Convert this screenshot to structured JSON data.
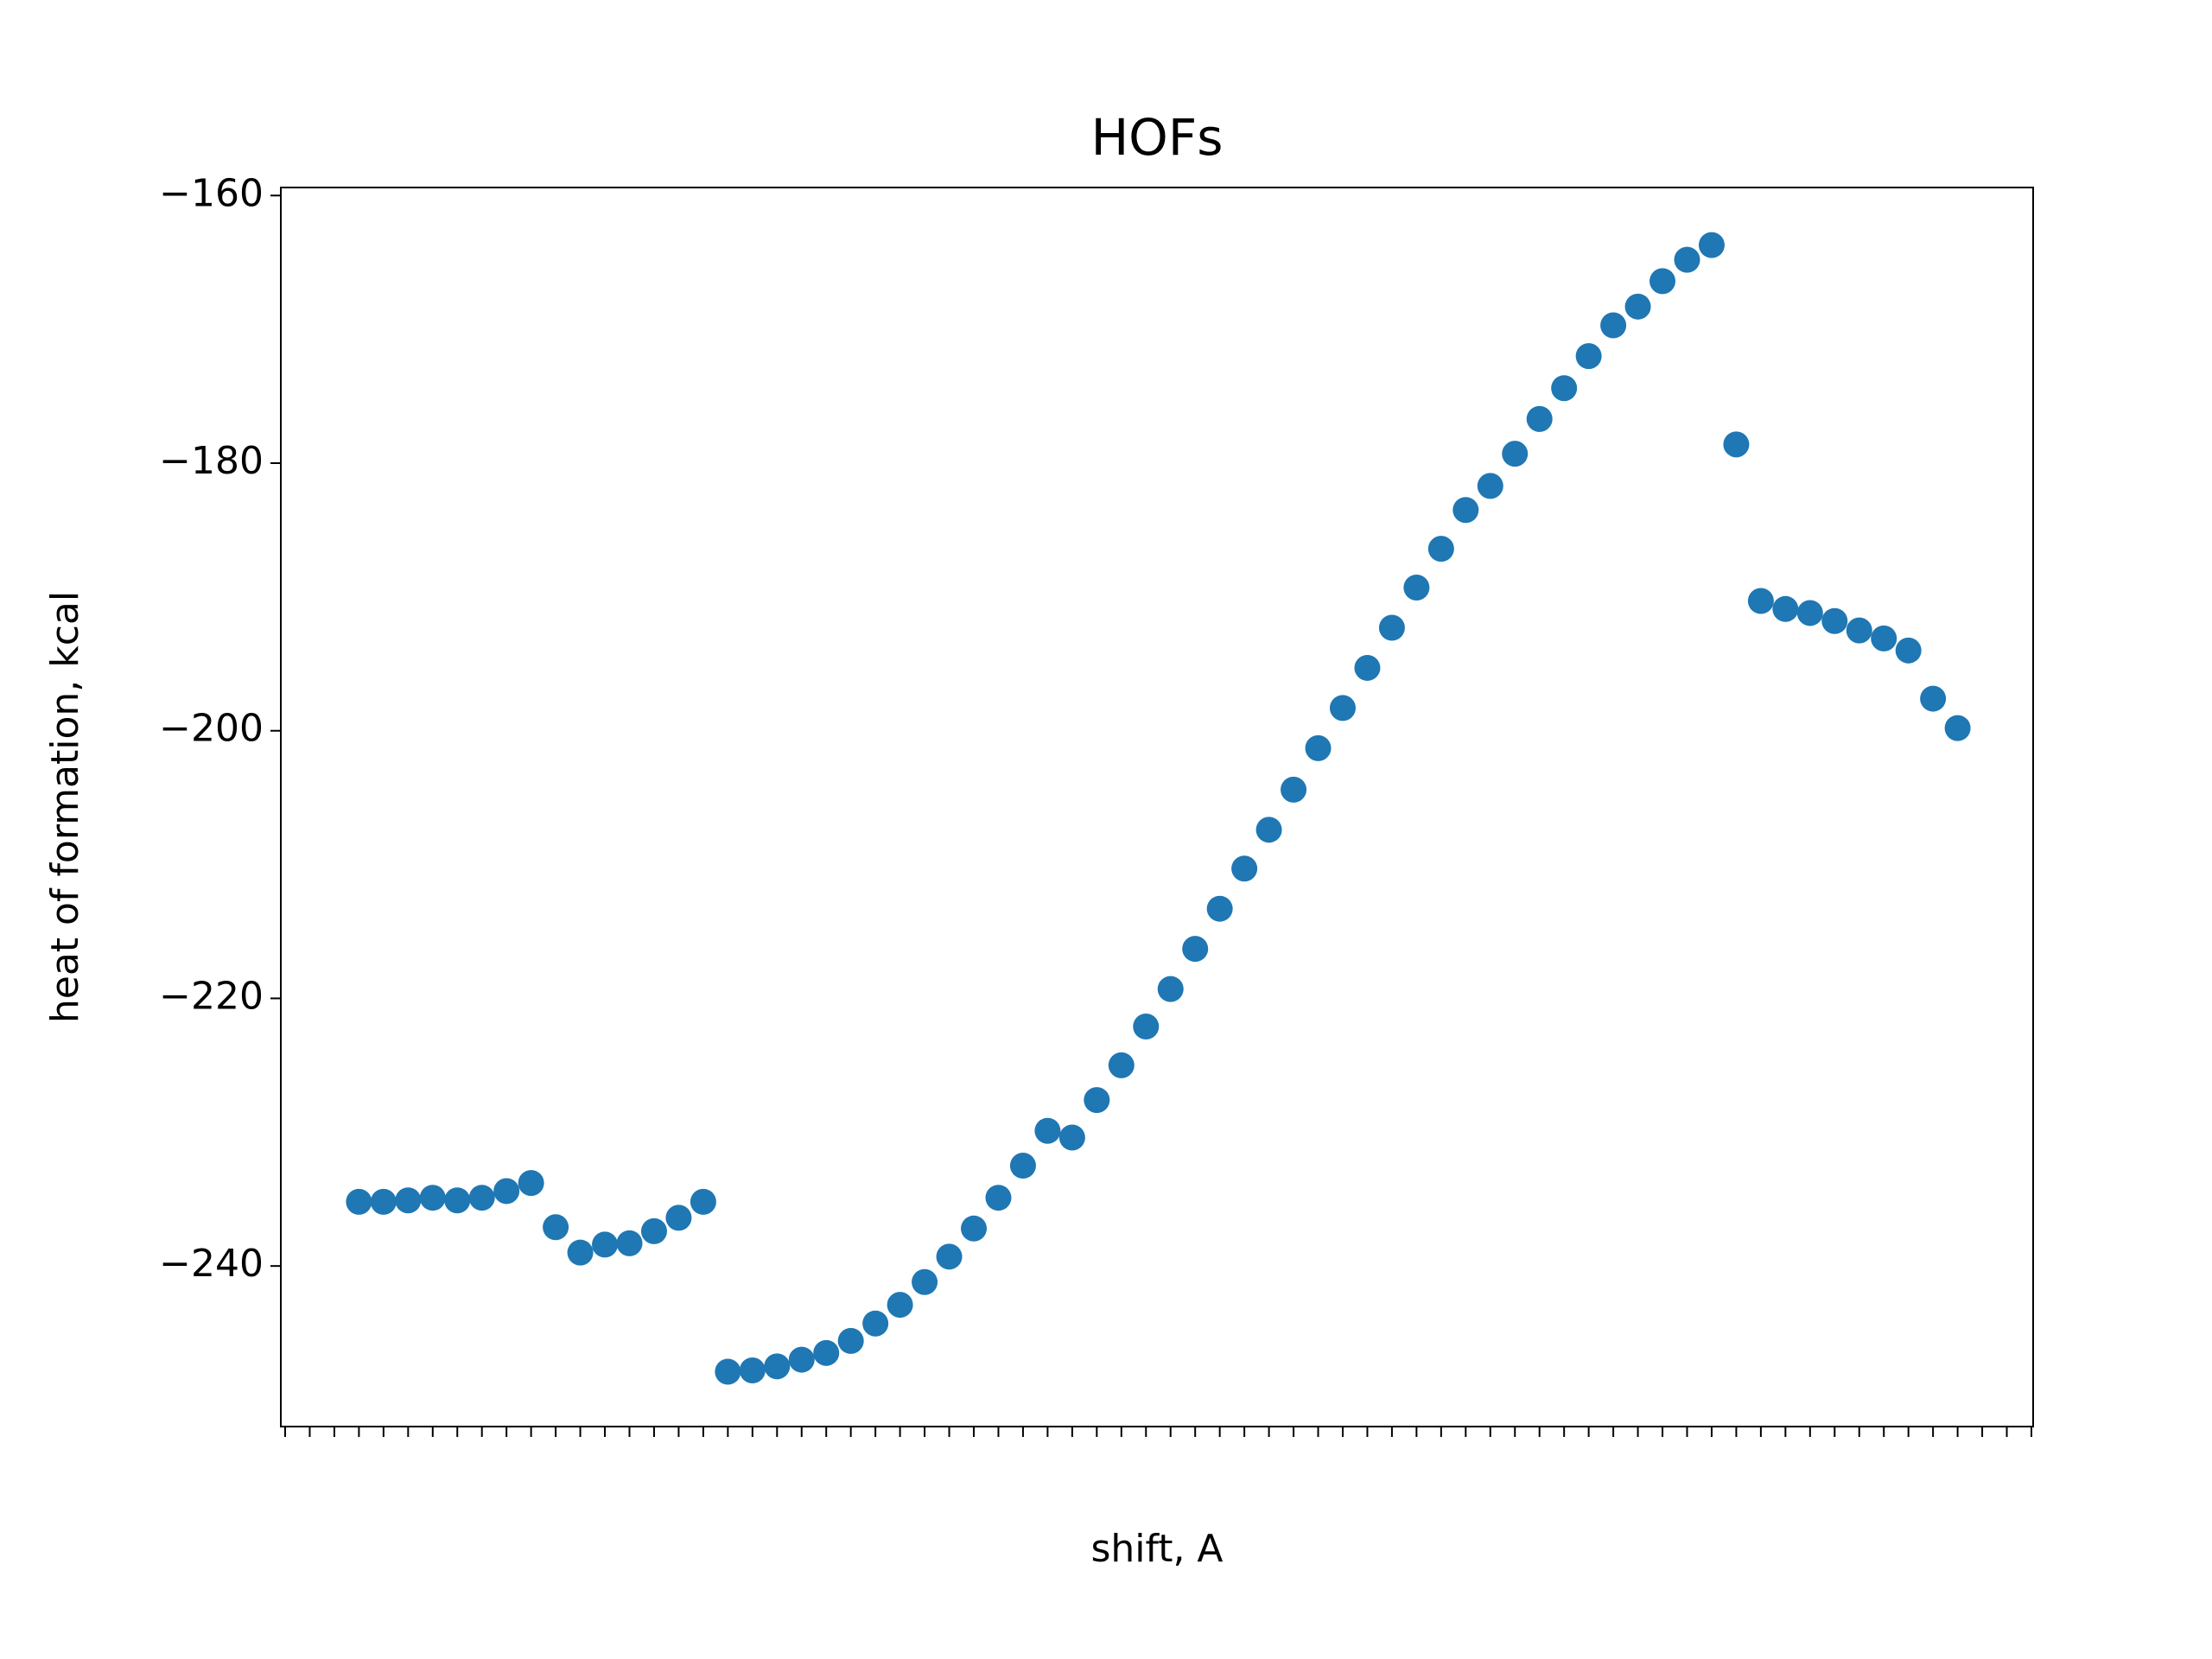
{
  "chart_data": {
    "type": "scatter",
    "title": "HOFs",
    "x_label": "shift, A",
    "y_label": "heat of formation, kcal",
    "categories": [
      null,
      null,
      null,
      null,
      null,
      null,
      null,
      null,
      null,
      null,
      null,
      null,
      null,
      null,
      null,
      null,
      null,
      null,
      null,
      null,
      null,
      null,
      null,
      null,
      null,
      null,
      null,
      null,
      null,
      null,
      null,
      null,
      null,
      null,
      null,
      null,
      null,
      null,
      null,
      null,
      null,
      null,
      null,
      null,
      null,
      null,
      null,
      null,
      null,
      null,
      null,
      null,
      null,
      null,
      null,
      null,
      null,
      null,
      null,
      null,
      null,
      null,
      null,
      null,
      null,
      null,
      null,
      null,
      null,
      null,
      null,
      null
    ],
    "values": [
      null,
      null,
      null,
      -235.2,
      -235.2,
      -235.1,
      -234.9,
      -235.1,
      -234.9,
      -234.4,
      -233.8,
      -237.1,
      -239.0,
      -238.4,
      -238.3,
      -237.4,
      -236.4,
      -235.2,
      -247.9,
      -247.8,
      -247.5,
      -247.0,
      -246.5,
      -245.6,
      -244.3,
      -242.9,
      -241.2,
      -239.3,
      -237.2,
      -234.9,
      -232.5,
      -229.9,
      -230.4,
      -227.6,
      -225.0,
      -222.1,
      -219.3,
      -216.3,
      -213.3,
      -210.3,
      -207.4,
      -204.4,
      -201.3,
      -198.3,
      -195.3,
      -192.3,
      -189.3,
      -186.4,
      -183.5,
      -181.7,
      -179.3,
      -176.7,
      -174.4,
      -172.0,
      -169.7,
      -168.3,
      -166.4,
      -164.8,
      -163.7,
      -178.6,
      -190.3,
      -190.9,
      -191.2,
      -191.8,
      -192.5,
      -193.1,
      -194.0,
      -197.6,
      -199.8,
      null,
      null,
      null
    ],
    "color": "#1f77b4",
    "ylim": [
      -252,
      -159.4
    ],
    "yticks": [
      {
        "value": -240,
        "label": "−240"
      },
      {
        "value": -220,
        "label": "−220"
      },
      {
        "value": -200,
        "label": "−200"
      },
      {
        "value": -180,
        "label": "−180"
      },
      {
        "value": -160,
        "label": "−160"
      }
    ]
  }
}
